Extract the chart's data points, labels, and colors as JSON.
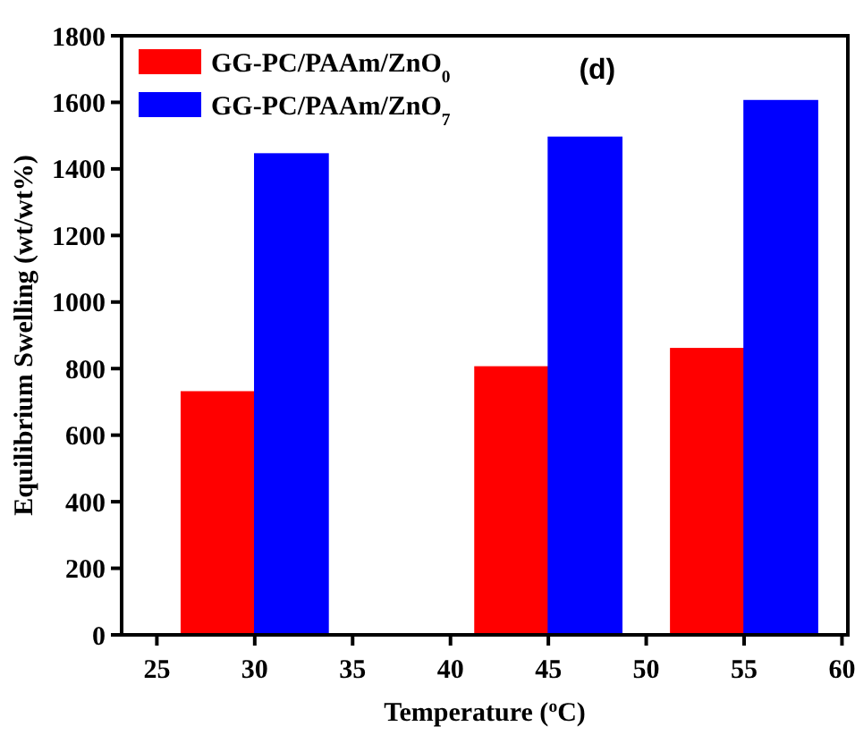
{
  "chart_data": {
    "type": "bar",
    "title": "(d)",
    "xlabel": "Temperature ($^{o}$C)",
    "ylabel": "Equilibrium Swelling (wt/wt%)",
    "x": [
      30,
      45,
      55
    ],
    "series": [
      {
        "name": "GG-PC/PAAm/ZnO$_{0}$",
        "color": "#ff0000",
        "values": [
          730,
          805,
          860
        ]
      },
      {
        "name": "GG-PC/PAAm/ZnO$_{7}$",
        "color": "#0000ff",
        "values": [
          1445,
          1495,
          1605
        ]
      }
    ],
    "xlim": [
      23.2,
      60.3
    ],
    "xticks": [
      25,
      30,
      35,
      40,
      45,
      50,
      55,
      60
    ],
    "ylim": [
      0,
      1800
    ],
    "yticks": [
      0,
      200,
      400,
      600,
      800,
      1000,
      1200,
      1400,
      1600,
      1800
    ],
    "grid": false,
    "legend": "top left"
  }
}
